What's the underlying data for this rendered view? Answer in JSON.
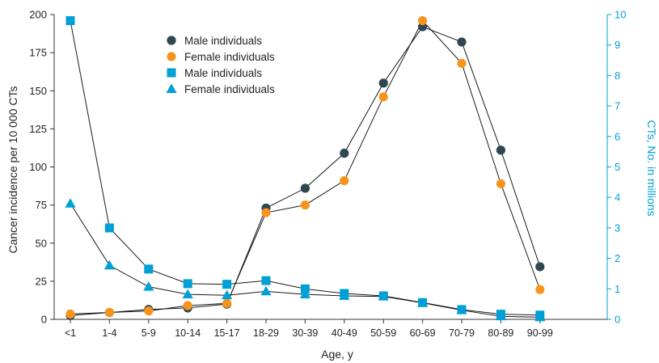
{
  "chart_data": {
    "type": "line",
    "categories": [
      "<1",
      "1-4",
      "5-9",
      "10-14",
      "15-17",
      "18-29",
      "30-39",
      "40-49",
      "50-59",
      "60-69",
      "70-79",
      "80-89",
      "90-99"
    ],
    "xlabel": "Age, y",
    "ylabel_left": "Cancer incidence per 10 000 CTs",
    "ylabel_right": "CTs, No. in millions",
    "ylim_left": [
      0,
      200
    ],
    "ylim_right": [
      0,
      10
    ],
    "yticks_left": [
      "0",
      "25",
      "50",
      "75",
      "100",
      "125",
      "150",
      "175",
      "200"
    ],
    "yticks_right": [
      "0",
      "1",
      "2",
      "3",
      "4",
      "5",
      "6",
      "7",
      "8",
      "9",
      "10"
    ],
    "grid": false,
    "legend_position": "top-left",
    "series": [
      {
        "name": "Male individuals",
        "axis": "left",
        "marker": "circle",
        "color": "#2e4750",
        "values": [
          2.5,
          4.5,
          6.5,
          7.5,
          10,
          73,
          86,
          109,
          155,
          192,
          182,
          111,
          34.5
        ]
      },
      {
        "name": "Female individuals",
        "axis": "left",
        "marker": "circle",
        "color": "#f7941d",
        "values": [
          3.5,
          4.5,
          5.5,
          9,
          10.5,
          70,
          75,
          91,
          146,
          196,
          168,
          89,
          19.5
        ]
      },
      {
        "name": "Male individuals",
        "axis": "right",
        "marker": "square",
        "color": "#00a0d6",
        "values": [
          9.8,
          3.0,
          1.65,
          1.17,
          1.15,
          1.27,
          1.0,
          0.85,
          0.77,
          0.55,
          0.32,
          0.17,
          0.14
        ]
      },
      {
        "name": "Female individuals",
        "axis": "right",
        "marker": "triangle",
        "color": "#00a0d6",
        "values": [
          3.8,
          1.77,
          1.07,
          0.82,
          0.79,
          0.92,
          0.82,
          0.77,
          0.75,
          0.54,
          0.3,
          0.1,
          0.07
        ]
      }
    ]
  }
}
